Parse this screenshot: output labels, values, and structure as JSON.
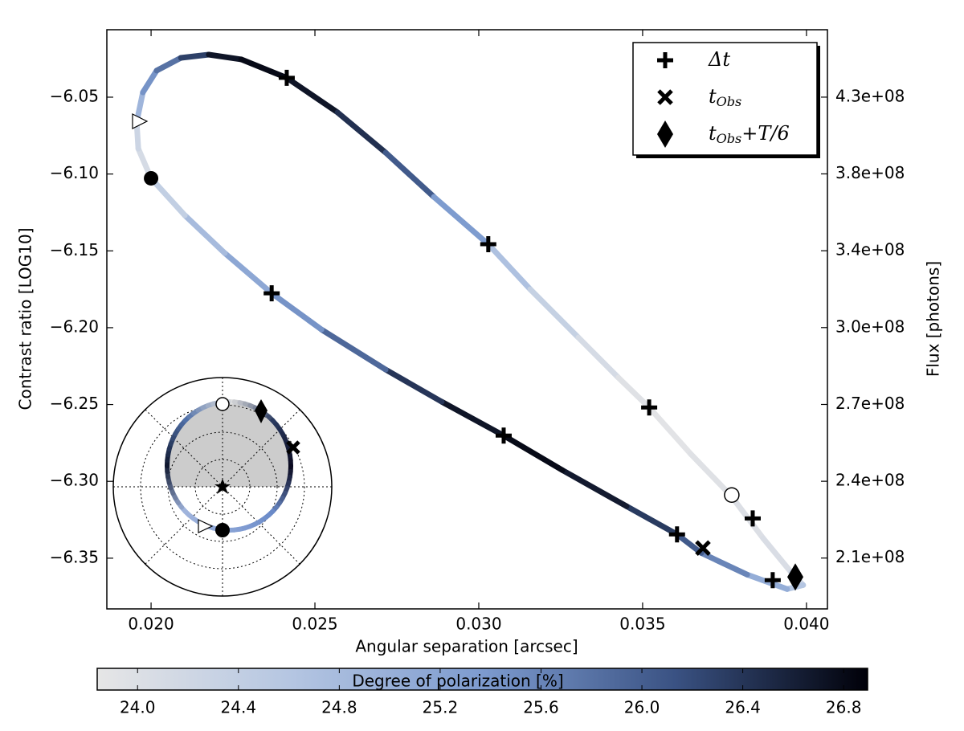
{
  "chart_data": {
    "type": "line",
    "xlabel": "Angular separation [arcsec]",
    "ylabel": "Contrast ratio [LOG10]",
    "y2label": "Flux [photons]",
    "xlim": [
      0.01865,
      0.04064
    ],
    "xticks": [
      {
        "value": 0.02,
        "label": "0.020"
      },
      {
        "value": 0.025,
        "label": "0.025"
      },
      {
        "value": 0.03,
        "label": "0.030"
      },
      {
        "value": 0.035,
        "label": "0.035"
      },
      {
        "value": 0.04,
        "label": "0.040"
      }
    ],
    "ylim": [
      -6.383,
      -6.0061
    ],
    "yticks": [
      {
        "value": -6.05,
        "label": "−6.05"
      },
      {
        "value": -6.1,
        "label": "−6.10"
      },
      {
        "value": -6.15,
        "label": "−6.15"
      },
      {
        "value": -6.2,
        "label": "−6.20"
      },
      {
        "value": -6.25,
        "label": "−6.25"
      },
      {
        "value": -6.3,
        "label": "−6.30"
      },
      {
        "value": -6.35,
        "label": "−6.35"
      }
    ],
    "y2log": true,
    "y2lim": [
      198300000,
      472400000
    ],
    "y2ticks": [
      {
        "value": 427000000,
        "label": "4.3e+08"
      },
      {
        "value": 380600000,
        "label": "3.8e+08"
      },
      {
        "value": 339200000,
        "label": "3.4e+08"
      },
      {
        "value": 302300000,
        "label": "3.0e+08"
      },
      {
        "value": 269400000,
        "label": "2.7e+08"
      },
      {
        "value": 240100000,
        "label": "2.4e+08"
      },
      {
        "value": 214000000,
        "label": "2.1e+08"
      }
    ],
    "curve": {
      "x": [
        0.01956,
        0.01975,
        0.02017,
        0.02091,
        0.02176,
        0.02275,
        0.02414,
        0.02569,
        0.02716,
        0.02863,
        0.03029,
        0.03157,
        0.03304,
        0.03426,
        0.0352,
        0.03647,
        0.0377,
        0.03868,
        0.03953,
        0.0399,
        0.03941,
        0.03819,
        0.03679,
        0.03605,
        0.03451,
        0.03255,
        0.03076,
        0.02887,
        0.02716,
        0.0252,
        0.02368,
        0.02225,
        0.02103,
        0.02,
        0.01961,
        0.01956
      ],
      "y": [
        -6.0662,
        -6.0469,
        -6.0327,
        -6.0244,
        -6.0223,
        -6.0254,
        -6.0374,
        -6.0599,
        -6.0861,
        -6.1149,
        -6.1457,
        -6.175,
        -6.2064,
        -6.2325,
        -6.2519,
        -6.2822,
        -6.3094,
        -6.3371,
        -6.3591,
        -6.3675,
        -6.3701,
        -6.3607,
        -6.3466,
        -6.3345,
        -6.3162,
        -6.2927,
        -6.2702,
        -6.2482,
        -6.2273,
        -6.2012,
        -6.1776,
        -6.1515,
        -6.1269,
        -6.1028,
        -6.0835,
        -6.0662
      ],
      "c": [
        24.5,
        25.3,
        25.6,
        26.0,
        26.6,
        26.8,
        26.8,
        26.6,
        26.3,
        25.8,
        24.9,
        24.5,
        24.2,
        24.0,
        23.9,
        23.9,
        24.0,
        24.0,
        24.1,
        24.4,
        24.8,
        25.3,
        25.9,
        26.2,
        26.5,
        26.8,
        26.8,
        26.6,
        26.2,
        25.6,
        25.3,
        25.0,
        24.6,
        24.2,
        24.0,
        24.5
      ],
      "width": 7
    },
    "markers": [
      {
        "shape": "plus",
        "label": {
          "name": "Δt"
        },
        "x": [
          0.02414,
          0.03029,
          0.02368,
          0.03076,
          0.0352,
          0.03605,
          0.03836,
          0.03897
        ],
        "y": [
          -6.0374,
          -6.1457,
          -6.1776,
          -6.2702,
          -6.2519,
          -6.3345,
          -6.3241,
          -6.3643
        ]
      },
      {
        "shape": "x",
        "label": {
          "name": "t",
          "sub": "Obs"
        },
        "x": [
          0.03684
        ],
        "y": [
          -6.3434
        ]
      },
      {
        "shape": "diamond",
        "label": {
          "name": "t",
          "sub": "Obs",
          "suffix": "+T/6"
        },
        "x": [
          0.03966
        ],
        "y": [
          -6.3622
        ]
      },
      {
        "shape": "open-circle",
        "x": [
          0.03772
        ],
        "y": [
          -6.3089
        ]
      },
      {
        "shape": "filled-circle",
        "x": [
          0.02
        ],
        "y": [
          -6.1028
        ]
      },
      {
        "shape": "open-triangle",
        "x": [
          0.01963
        ],
        "y": [
          -6.0657
        ]
      }
    ],
    "legend": "upper right",
    "colorbar": {
      "label": "Degree of polarization [%]",
      "lim": [
        23.84,
        26.895
      ],
      "ticks": [
        {
          "value": 24,
          "label": "24.0"
        },
        {
          "value": 24.4,
          "label": "24.4"
        },
        {
          "value": 24.8,
          "label": "24.8"
        },
        {
          "value": 25.2,
          "label": "25.2"
        },
        {
          "value": 25.6,
          "label": "25.6"
        },
        {
          "value": 26,
          "label": "26.0"
        },
        {
          "value": 26.4,
          "label": "26.4"
        },
        {
          "value": 26.8,
          "label": "26.8"
        }
      ],
      "colors": [
        "#e6e6e6",
        "#b5c6e2",
        "#7d9bcf",
        "#3a5283",
        "#000008"
      ]
    }
  }
}
